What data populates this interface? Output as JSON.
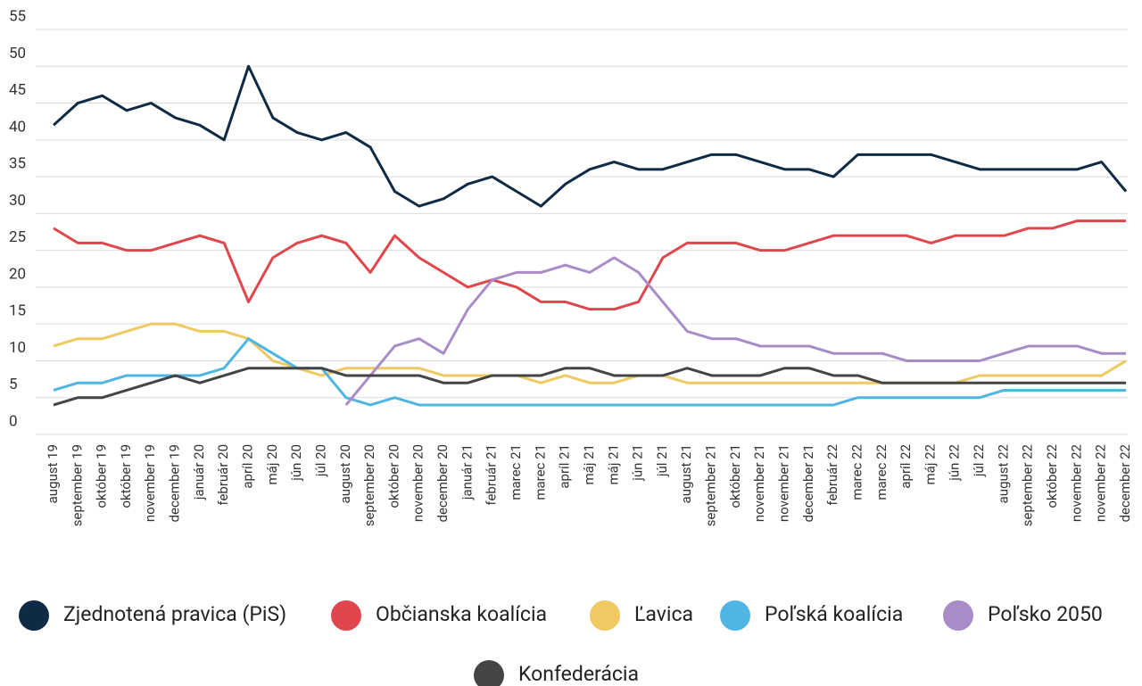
{
  "chart_data": {
    "type": "line",
    "categories": [
      "august 19",
      "september 19",
      "október 19",
      "október 19",
      "november 19",
      "december 19",
      "január 20",
      "február 20",
      "apríl 20",
      "máj 20",
      "jún 20",
      "júl 20",
      "august 20",
      "september 20",
      "október 20",
      "november 20",
      "december 20",
      "január 21",
      "február 21",
      "marec 21",
      "marec 21",
      "apríl 21",
      "máj 21",
      "máj 21",
      "jún 21",
      "júl 21",
      "august 21",
      "september 21",
      "október 21",
      "november 21",
      "november 21",
      "december 21",
      "február 22",
      "marec 22",
      "marec 22",
      "apríl 22",
      "máj 22",
      "jún 22",
      "júl 22",
      "august 22",
      "september 22",
      "október 22",
      "november 22",
      "november 22",
      "december 22"
    ],
    "series": [
      {
        "name": "Zjednotená pravica (PiS)",
        "color": "#0f2a44",
        "values": [
          42,
          45,
          46,
          44,
          45,
          43,
          42,
          40,
          50,
          43,
          41,
          40,
          41,
          39,
          33,
          31,
          32,
          34,
          35,
          33,
          31,
          34,
          36,
          37,
          36,
          36,
          37,
          38,
          38,
          37,
          36,
          36,
          35,
          38,
          38,
          38,
          38,
          37,
          36,
          36,
          36,
          36,
          36,
          37,
          33
        ]
      },
      {
        "name": "Občianska koalícia",
        "color": "#e0474c",
        "values": [
          28,
          26,
          26,
          25,
          25,
          26,
          27,
          26,
          18,
          24,
          26,
          27,
          26,
          22,
          27,
          24,
          22,
          20,
          21,
          20,
          18,
          18,
          17,
          17,
          18,
          24,
          26,
          26,
          26,
          25,
          25,
          26,
          27,
          27,
          27,
          27,
          26,
          27,
          27,
          27,
          28,
          28,
          29,
          29,
          29
        ]
      },
      {
        "name": "Ľavica",
        "color": "#efc962",
        "values": [
          12,
          13,
          13,
          14,
          15,
          15,
          14,
          14,
          13,
          10,
          9,
          8,
          9,
          9,
          9,
          9,
          8,
          8,
          8,
          8,
          7,
          8,
          7,
          7,
          8,
          8,
          7,
          7,
          7,
          7,
          7,
          7,
          7,
          7,
          7,
          7,
          7,
          7,
          8,
          8,
          8,
          8,
          8,
          8,
          10
        ]
      },
      {
        "name": "Poľská koalícia",
        "color": "#4fb6e3",
        "values": [
          6,
          7,
          7,
          8,
          8,
          8,
          8,
          9,
          13,
          11,
          9,
          9,
          5,
          4,
          5,
          4,
          4,
          4,
          4,
          4,
          4,
          4,
          4,
          4,
          4,
          4,
          4,
          4,
          4,
          4,
          4,
          4,
          4,
          5,
          5,
          5,
          5,
          5,
          5,
          6,
          6,
          6,
          6,
          6,
          6
        ]
      },
      {
        "name": "Poľsko 2050",
        "color": "#a88cc8",
        "values": [
          null,
          null,
          null,
          null,
          null,
          null,
          null,
          null,
          null,
          null,
          null,
          null,
          4,
          8,
          12,
          13,
          11,
          17,
          21,
          22,
          22,
          23,
          22,
          24,
          22,
          18,
          14,
          13,
          13,
          12,
          12,
          12,
          11,
          11,
          11,
          10,
          10,
          10,
          10,
          11,
          12,
          12,
          12,
          11,
          11
        ]
      },
      {
        "name": "Konfederácia",
        "color": "#444444",
        "values": [
          4,
          5,
          5,
          6,
          7,
          8,
          7,
          8,
          9,
          9,
          9,
          9,
          8,
          8,
          8,
          8,
          7,
          7,
          8,
          8,
          8,
          9,
          9,
          8,
          8,
          8,
          9,
          8,
          8,
          8,
          9,
          9,
          8,
          8,
          7,
          7,
          7,
          7,
          7,
          7,
          7,
          7,
          7,
          7,
          7
        ]
      }
    ],
    "ylim": [
      0,
      55
    ],
    "yticks": [
      0,
      5,
      10,
      15,
      20,
      25,
      30,
      35,
      40,
      45,
      50,
      55
    ],
    "grid": true
  }
}
